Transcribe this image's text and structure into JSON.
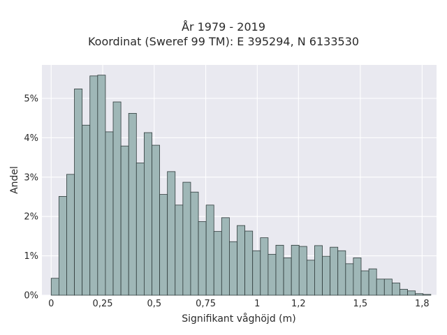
{
  "chart_data": {
    "type": "bar",
    "title": "År 1979 - 2019",
    "subtitle": "Koordinat (Sweref 99 TM): E 395294, N 6133530",
    "xlabel": "Signifikant våghöjd (m)",
    "ylabel": "Andel",
    "xlim": [
      -0.045,
      1.87
    ],
    "ylim": [
      0,
      0.0585
    ],
    "x_ticks": [
      {
        "value": 0,
        "label": "0"
      },
      {
        "value": 0.25,
        "label": "0,25"
      },
      {
        "value": 0.5,
        "label": "0,5"
      },
      {
        "value": 0.75,
        "label": "0,75"
      },
      {
        "value": 1,
        "label": "1"
      },
      {
        "value": 1.2,
        "label": "1,2"
      },
      {
        "value": 1.5,
        "label": "1,5"
      },
      {
        "value": 1.8,
        "label": "1,8"
      }
    ],
    "y_ticks": [
      {
        "value": 0,
        "label": "0%"
      },
      {
        "value": 0.01,
        "label": "1%"
      },
      {
        "value": 0.02,
        "label": "2%"
      },
      {
        "value": 0.03,
        "label": "3%"
      },
      {
        "value": 0.04,
        "label": "4%"
      },
      {
        "value": 0.05,
        "label": "5%"
      }
    ],
    "bin_width": 0.0376,
    "bins_start": 0,
    "values": [
      0.0043,
      0.0251,
      0.0307,
      0.0524,
      0.0432,
      0.0557,
      0.0559,
      0.0415,
      0.0491,
      0.0379,
      0.0462,
      0.0336,
      0.0413,
      0.0381,
      0.0256,
      0.0314,
      0.0229,
      0.0287,
      0.0262,
      0.0187,
      0.0229,
      0.0162,
      0.0197,
      0.0136,
      0.0177,
      0.0163,
      0.0113,
      0.0146,
      0.0104,
      0.0127,
      0.0095,
      0.0127,
      0.0124,
      0.0089,
      0.0126,
      0.0099,
      0.0122,
      0.0113,
      0.008,
      0.0095,
      0.0062,
      0.0067,
      0.0041,
      0.0041,
      0.0031,
      0.0015,
      0.0011,
      0.0004,
      0.0002
    ],
    "grid": true,
    "colors": {
      "background": "#e9e9f0",
      "bar_fill": "#9fb7b7",
      "bar_edge": "#2f3b3b",
      "grid": "#ffffff"
    }
  }
}
